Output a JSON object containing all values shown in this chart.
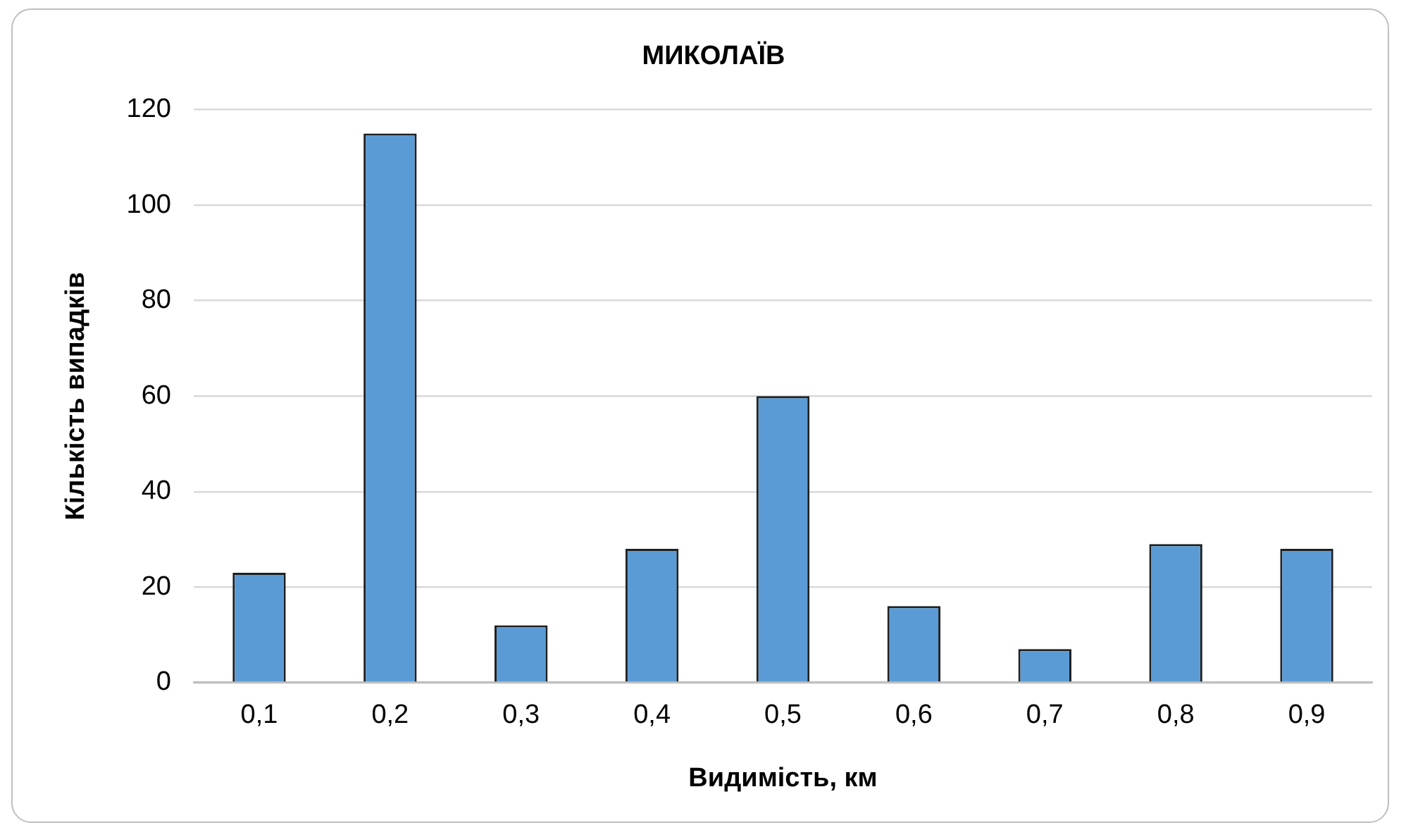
{
  "chart_data": {
    "type": "bar",
    "title": "МИКОЛАЇВ",
    "xlabel": "Видимість, км",
    "ylabel": "Кількість випадків",
    "categories": [
      "0,1",
      "0,2",
      "0,3",
      "0,4",
      "0,5",
      "0,6",
      "0,7",
      "0,8",
      "0,9"
    ],
    "values": [
      23,
      115,
      12,
      28,
      60,
      16,
      7,
      29,
      28
    ],
    "color": "#5b9bd5",
    "ylim": [
      0,
      120
    ],
    "yticks": [
      0,
      20,
      40,
      60,
      80,
      100,
      120
    ],
    "grid": "y",
    "legend": false
  }
}
